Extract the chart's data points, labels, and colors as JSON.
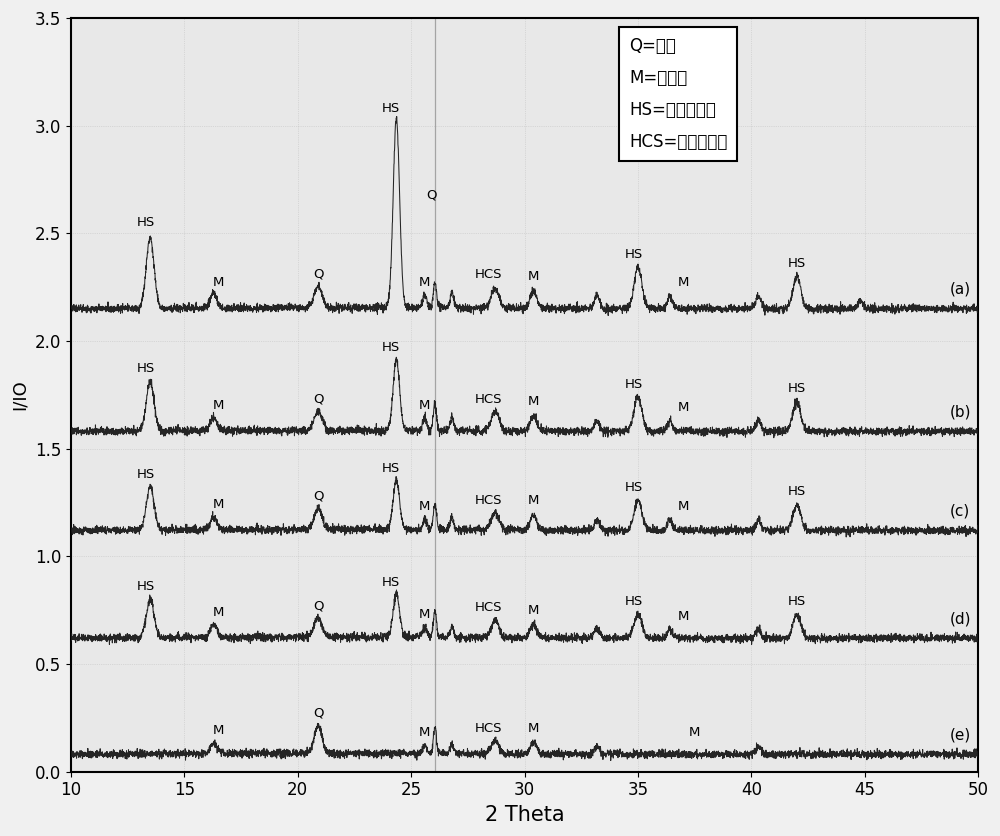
{
  "xlim": [
    10,
    50
  ],
  "ylim": [
    0.0,
    3.5
  ],
  "xlabel": "2 Theta",
  "ylabel": "I/IO",
  "xlabel_fontsize": 15,
  "ylabel_fontsize": 13,
  "tick_fontsize": 12,
  "background_color": "#f0f0f0",
  "plot_bg_color": "#e8e8e8",
  "line_color": "#1a1a1a",
  "legend_lines": [
    "Q=石英",
    "M=莫来石",
    "HS=羟基方钒石",
    "HCS=硬璑酸馒石"
  ],
  "spectra_labels": [
    "(a)",
    "(b)",
    "(c)",
    "(d)",
    "(e)"
  ],
  "spectra_offsets": [
    2.15,
    1.58,
    1.12,
    0.62,
    0.08
  ],
  "yticks": [
    0.0,
    0.5,
    1.0,
    1.5,
    2.0,
    2.5,
    3.0,
    3.5
  ],
  "xticks": [
    10,
    15,
    20,
    25,
    30,
    35,
    40,
    45,
    50
  ]
}
